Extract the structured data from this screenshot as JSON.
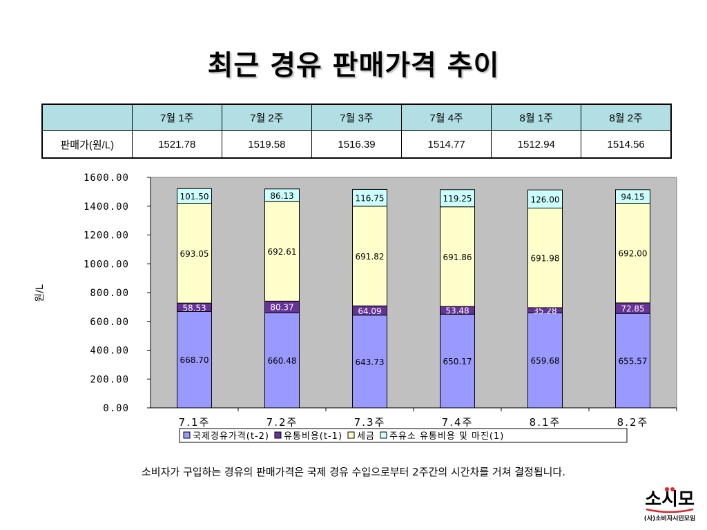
{
  "slide": {
    "title": "최근 경유 판매가격 추이",
    "caption": "소비자가 구입하는 경유의 판매가격은 국제 경유 수입으로부터 2주간의 시간차를 거쳐 결정됩니다."
  },
  "table": {
    "row_label": "판매가(원/L)",
    "headers": [
      "7월 1주",
      "7월 2주",
      "7월 3주",
      "7월 4주",
      "8월 1주",
      "8월 2주"
    ],
    "values": [
      "1521.78",
      "1519.58",
      "1516.39",
      "1514.77",
      "1512.94",
      "1514.56"
    ]
  },
  "logo": {
    "mark": "소시모",
    "text": "(사)소비자시민모임"
  },
  "chart_data": {
    "type": "bar",
    "stacked": true,
    "categories": [
      "7.1주",
      "7.2주",
      "7.3주",
      "7.4주",
      "8.1주",
      "8.2주"
    ],
    "ylabel": "원/L",
    "xlabel": "",
    "ylim": [
      0,
      1600
    ],
    "yticks": [
      "0.00",
      "200.00",
      "400.00",
      "600.00",
      "800.00",
      "1000.00",
      "1200.00",
      "1400.00",
      "1600.00"
    ],
    "grid": false,
    "legend_position": "bottom",
    "plot_background": "#c0c0c0",
    "series": [
      {
        "name": "국제경유가격(t-2)",
        "color": "#9999ff",
        "values": [
          668.7,
          660.48,
          643.73,
          650.17,
          659.68,
          655.57
        ],
        "labels": [
          "668.70",
          "660.48",
          "643.73",
          "650.17",
          "659.68",
          "655.57"
        ]
      },
      {
        "name": "유통비용(t-1)",
        "color": "#663399",
        "values": [
          58.53,
          80.37,
          64.09,
          53.48,
          35.28,
          72.85
        ],
        "labels": [
          "58.53",
          "80.37",
          "64.09",
          "53.48",
          "35.28",
          "72.85"
        ]
      },
      {
        "name": "세금",
        "color": "#ffffcc",
        "values": [
          693.05,
          692.61,
          691.82,
          691.86,
          691.98,
          692.0
        ],
        "labels": [
          "693.05",
          "692.61",
          "691.82",
          "691.86",
          "691.98",
          "692.00"
        ]
      },
      {
        "name": "주유소 유통비용 및 마진(1)",
        "color": "#ccffff",
        "values": [
          101.5,
          86.13,
          116.75,
          119.25,
          126.0,
          94.15
        ],
        "labels": [
          "101.50",
          "86.13",
          "116.75",
          "119.25",
          "126.00",
          "94.15"
        ]
      }
    ]
  }
}
